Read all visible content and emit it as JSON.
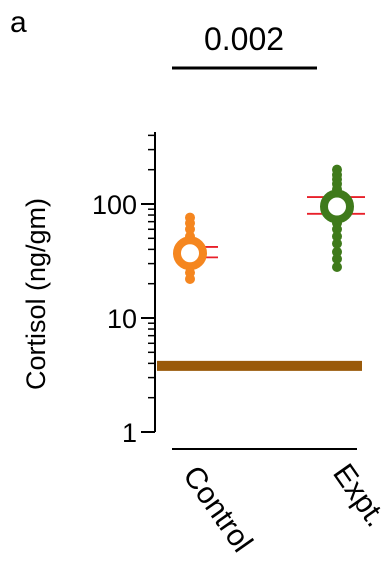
{
  "panel_label": "a",
  "chart_data": {
    "type": "scatter",
    "title": "",
    "xlabel": "",
    "ylabel": "Cortisol (ng/gm)",
    "yscale": "log",
    "ylim": [
      1,
      400
    ],
    "ytick_labels": [
      {
        "value": 1,
        "label": "1"
      },
      {
        "value": 10,
        "label": "10"
      },
      {
        "value": 100,
        "label": "100"
      }
    ],
    "categories": [
      "Control",
      "Expt."
    ],
    "groups": [
      {
        "category": "Control",
        "color": "#f5861f",
        "points": [
          76,
          68,
          60,
          52,
          45,
          40,
          35,
          31,
          28,
          25,
          22
        ],
        "center": 37,
        "ci": [
          34,
          42
        ],
        "ci_color": "#e8202a"
      },
      {
        "category": "Expt.",
        "color": "#3f7a1b",
        "points": [
          200,
          180,
          165,
          150,
          135,
          120,
          105,
          90,
          78,
          68,
          60,
          52,
          45,
          38,
          33,
          28
        ],
        "center": 95,
        "ci": [
          82,
          115
        ],
        "ci_color": "#e8202a"
      }
    ],
    "reference_line": {
      "value": 3.8,
      "color": "#9a5a0a"
    },
    "comparison": {
      "groups": [
        "Control",
        "Expt."
      ],
      "label": "0.002"
    },
    "grid": false,
    "legend": "none"
  }
}
